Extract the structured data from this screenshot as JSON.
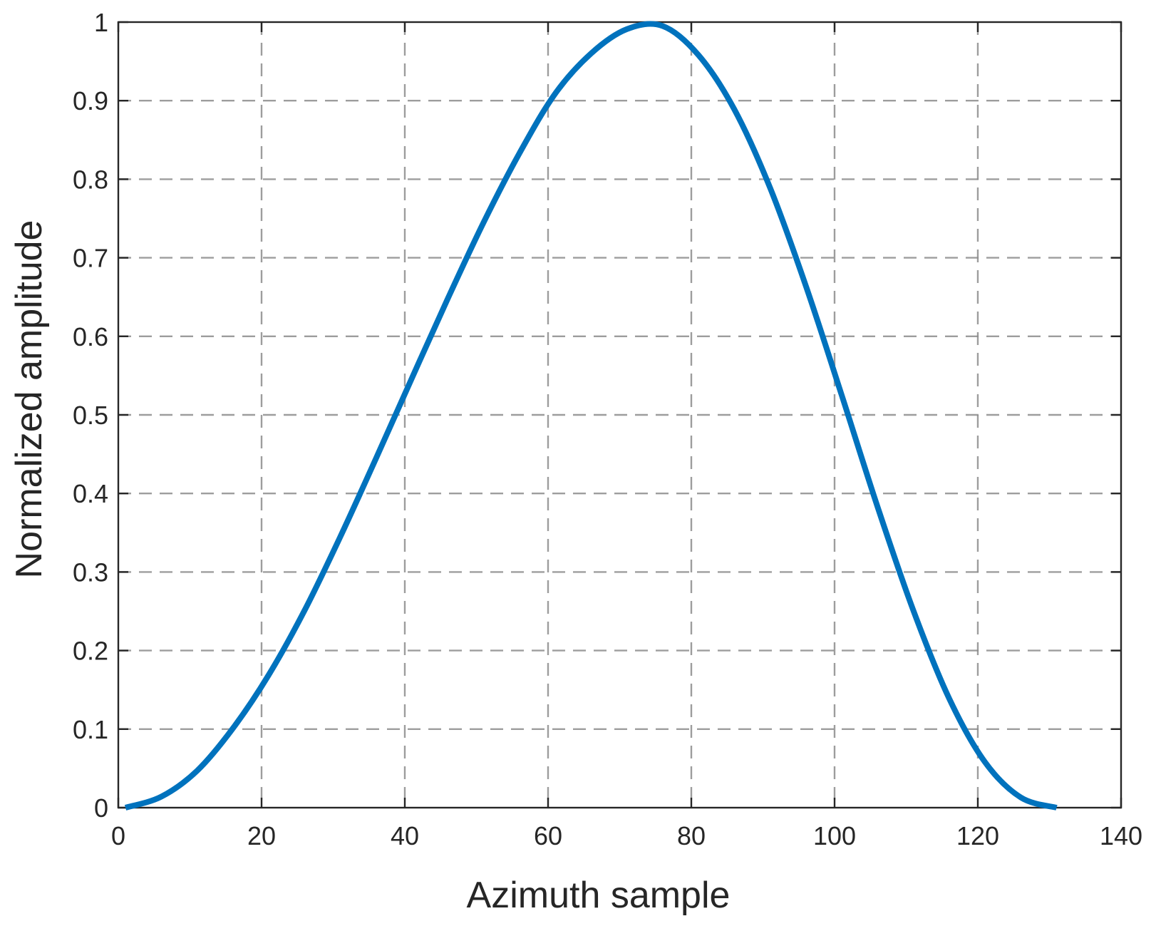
{
  "chart_data": {
    "type": "line",
    "title": "",
    "xlabel": "Azimuth sample",
    "ylabel": "Normalized amplitude",
    "xlim": [
      0,
      140
    ],
    "ylim": [
      0,
      1
    ],
    "x_ticks": [
      0,
      20,
      40,
      60,
      80,
      100,
      120,
      140
    ],
    "y_ticks": [
      0,
      0.1,
      0.2,
      0.3,
      0.4,
      0.5,
      0.6,
      0.7,
      0.8,
      0.9,
      1
    ],
    "x_tick_labels": [
      "0",
      "20",
      "40",
      "60",
      "80",
      "100",
      "120",
      "140"
    ],
    "y_tick_labels": [
      "0",
      "0.1",
      "0.2",
      "0.3",
      "0.4",
      "0.5",
      "0.6",
      "0.7",
      "0.8",
      "0.9",
      "1"
    ],
    "grid": true,
    "legend": false,
    "series": [
      {
        "color": "#0072BD",
        "x": [
          1,
          6,
          11,
          16,
          21,
          26,
          31,
          36,
          41,
          46,
          51,
          56,
          61,
          66,
          71,
          76,
          81,
          86,
          91,
          96,
          101,
          106,
          111,
          116,
          121,
          126,
          131
        ],
        "y": [
          0,
          0.014,
          0.047,
          0.101,
          0.169,
          0.251,
          0.345,
          0.445,
          0.547,
          0.648,
          0.745,
          0.833,
          0.909,
          0.96,
          0.991,
          0.995,
          0.958,
          0.889,
          0.789,
          0.664,
          0.525,
          0.383,
          0.251,
          0.139,
          0.058,
          0.013,
          0
        ]
      }
    ]
  }
}
